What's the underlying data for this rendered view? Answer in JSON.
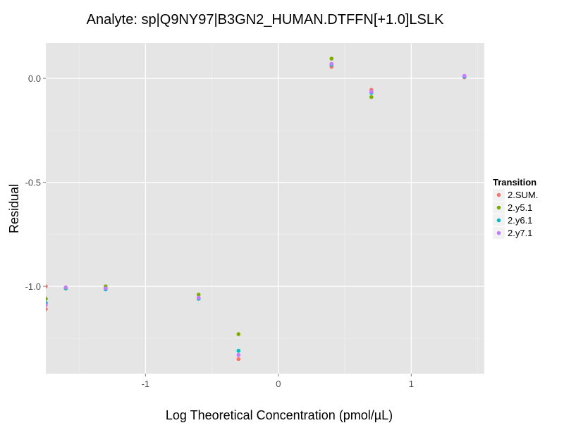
{
  "chart_data": {
    "type": "scatter",
    "title": "Analyte: sp|Q9NY97|B3GN2_HUMAN.DTFFN[+1.0]LSLK",
    "xlabel": "Log Theoretical Concentration (pmol/µL)",
    "ylabel": "Residual",
    "xlim": [
      -1.75,
      1.55
    ],
    "ylim": [
      -1.42,
      0.17
    ],
    "x_ticks": [
      -1,
      0,
      1
    ],
    "x_tick_labels": [
      "-1",
      "0",
      "1"
    ],
    "y_ticks": [
      0.0,
      -0.5,
      -1.0
    ],
    "y_tick_labels": [
      "0.0",
      "-0.5",
      "-1.0"
    ],
    "grid": true,
    "legend": {
      "title": "Transition",
      "position": "right"
    },
    "series": [
      {
        "name": "2.SUM.",
        "color": "#F8766D",
        "x": [
          -1.75,
          -1.75,
          -1.6,
          -1.3,
          -0.6,
          -0.3,
          0.4,
          0.7,
          1.4
        ],
        "y": [
          -1.0,
          -1.11,
          -1.01,
          -1.01,
          -1.06,
          -1.35,
          0.055,
          -0.055,
          0.005
        ]
      },
      {
        "name": "2.y5.1",
        "color": "#7CAE00",
        "x": [
          -1.75,
          -1.6,
          -1.3,
          -0.6,
          -0.3,
          0.4,
          0.7,
          1.4
        ],
        "y": [
          -1.06,
          -1.01,
          -1.0,
          -1.04,
          -1.23,
          0.095,
          -0.09,
          0.01
        ]
      },
      {
        "name": "2.y6.1",
        "color": "#00BFC4",
        "x": [
          -1.75,
          -1.6,
          -1.3,
          -0.6,
          -0.3,
          0.4,
          0.7,
          1.4
        ],
        "y": [
          -1.08,
          -1.01,
          -1.015,
          -1.06,
          -1.31,
          0.065,
          -0.07,
          0.008
        ]
      },
      {
        "name": "2.y7.1",
        "color": "#C77CFF",
        "x": [
          -1.75,
          -1.6,
          -1.3,
          -0.6,
          -0.3,
          0.4,
          0.7,
          1.4
        ],
        "y": [
          -1.09,
          -1.005,
          -1.01,
          -1.055,
          -1.33,
          0.07,
          -0.065,
          0.012
        ]
      }
    ]
  }
}
